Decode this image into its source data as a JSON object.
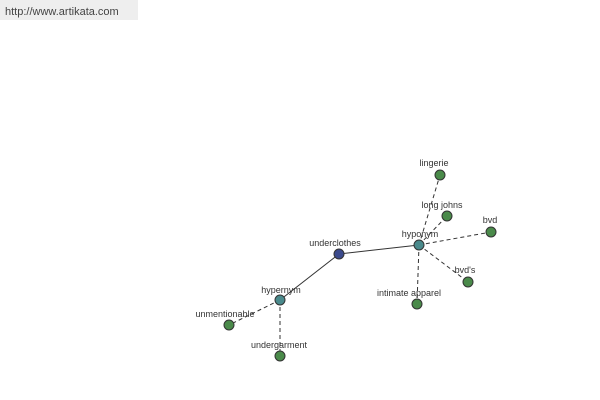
{
  "url": "http://www.artikata.com",
  "nodes": [
    {
      "label": "underclothes"
    },
    {
      "label": "hyponym"
    },
    {
      "label": "hypernym"
    },
    {
      "label": "lingerie"
    },
    {
      "label": "long johns"
    },
    {
      "label": "bvd"
    },
    {
      "label": "bvd's"
    },
    {
      "label": "intimate apparel"
    },
    {
      "label": "unmentionable"
    },
    {
      "label": "undergarment"
    }
  ]
}
